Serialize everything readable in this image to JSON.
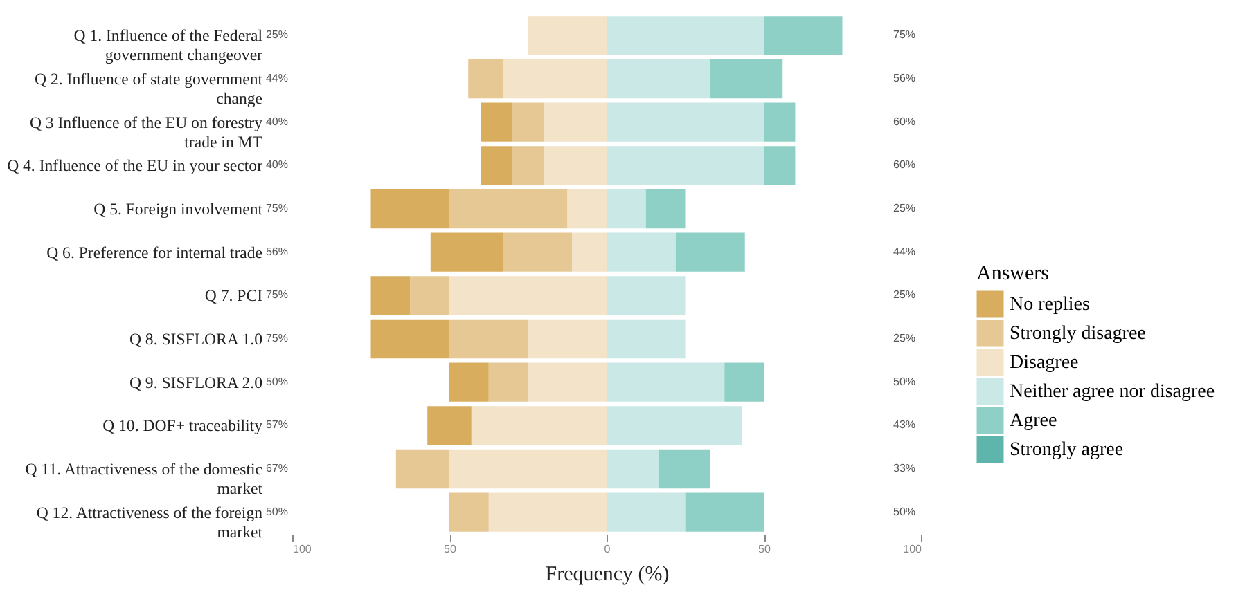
{
  "chart_data": {
    "type": "bar",
    "orientation": "horizontal",
    "stacked": true,
    "xlabel": "Frequency (%)",
    "legend_title": "Answers",
    "legend": "right",
    "grid": false,
    "categories": [
      "Q 1. Influence of the Federal government changeover",
      "Q 2. Influence of state government change",
      "Q 3 Influence of the EU on forestry trade in MT",
      "Q 4. Influence of the EU in your sector",
      "Q 5. Foreign involvement",
      "Q 6. Preference for internal trade",
      "Q 7. PCI",
      "Q 8. SISFLORA 1.0",
      "Q 9. SISFLORA 2.0",
      "Q 10. DOF+ traceability",
      "Q 11. Attractiveness of the domestic market",
      "Q 12. Attractiveness of the foreign market"
    ],
    "xlim": [
      -100,
      100
    ],
    "xticks": [
      {
        "value": -100,
        "label": "100"
      },
      {
        "value": -50,
        "label": "50"
      },
      0,
      50,
      100
    ],
    "series": [
      {
        "name": "Disagree",
        "color": "#f3e3c8",
        "values": [
          -25,
          -33,
          -20,
          -20,
          -12.5,
          -11,
          -50,
          -25,
          -25,
          -43,
          -50,
          -37.5
        ]
      },
      {
        "name": "Strongly disagree",
        "color": "#e6c894",
        "values": [
          null,
          -11,
          -10,
          -10,
          -37.5,
          -22,
          -12.5,
          -25,
          -12.5,
          null,
          -17,
          -12.5
        ]
      },
      {
        "name": "No replies",
        "color": "#d8ae5e",
        "values": [
          null,
          null,
          -10,
          -10,
          -25,
          -23,
          -12.5,
          -25,
          -12.5,
          -14,
          null,
          null
        ]
      },
      {
        "name": "Neither agree nor disagree",
        "color": "#c9e8e6",
        "values": [
          50,
          33,
          50,
          50,
          12.5,
          22,
          25,
          25,
          37.5,
          43,
          16.5,
          25
        ]
      },
      {
        "name": "Agree",
        "color": "#8fd0c6",
        "values": [
          25,
          23,
          10,
          10,
          12.5,
          22,
          null,
          null,
          12.5,
          null,
          16.5,
          25
        ]
      },
      {
        "name": "Strongly agree",
        "color": "#5db5ac",
        "values": [
          null,
          null,
          null,
          null,
          null,
          null,
          null,
          null,
          null,
          null,
          null,
          null
        ]
      }
    ],
    "annotations": [
      "25%",
      "44%",
      "40%",
      "40%",
      "75%",
      "56%",
      "75%",
      "75%",
      "50%",
      "57%",
      "67%",
      "50%",
      "75%",
      "56%",
      "60%",
      "60%",
      "25%",
      "44%",
      "25%",
      "25%",
      "50%",
      "43%",
      "33%",
      "50%"
    ]
  }
}
